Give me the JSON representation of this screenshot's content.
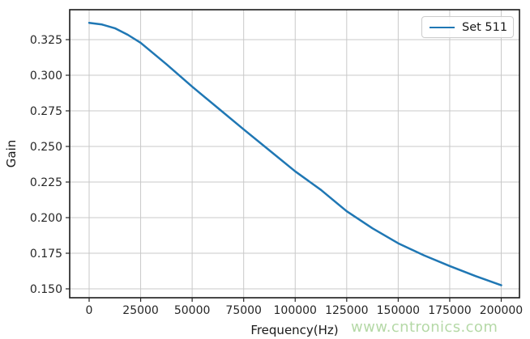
{
  "chart_data": {
    "type": "line",
    "title": "",
    "xlabel": "Frequency(Hz)",
    "ylabel": "Gain",
    "grid": true,
    "grid_color": "#c9c9c9",
    "axis_color": "#262626",
    "frame_color": "#1a1a1a",
    "xlim": [
      -9440,
      208850
    ],
    "ylim": [
      0.14375,
      0.34602
    ],
    "xticks": [
      0,
      25000,
      50000,
      75000,
      100000,
      125000,
      150000,
      175000,
      200000
    ],
    "xtick_labels": [
      "0",
      "25000",
      "50000",
      "75000",
      "100000",
      "125000",
      "150000",
      "175000",
      "200000"
    ],
    "yticks": [
      0.15,
      0.175,
      0.2,
      0.225,
      0.25,
      0.275,
      0.3,
      0.325
    ],
    "ytick_labels": [
      "0.150",
      "0.175",
      "0.200",
      "0.225",
      "0.250",
      "0.275",
      "0.300",
      "0.325"
    ],
    "x": [
      0,
      6250,
      12500,
      18750,
      25000,
      37500,
      50000,
      62500,
      75000,
      87500,
      100000,
      112500,
      125000,
      137500,
      150000,
      162500,
      175000,
      187500,
      200000
    ],
    "series": [
      {
        "name": "Set 511",
        "color": "#1f77b4",
        "values": [
          0.3368,
          0.3356,
          0.333,
          0.3284,
          0.3228,
          0.3078,
          0.292,
          0.277,
          0.262,
          0.2472,
          0.2325,
          0.2195,
          0.2045,
          0.1925,
          0.182,
          0.1735,
          0.166,
          0.159,
          0.1525
        ]
      }
    ],
    "legend": {
      "position": "upper right",
      "entries": [
        "Set 511"
      ]
    }
  },
  "watermark": {
    "text": "www.cntronics.com",
    "color": "#b2d7a3"
  }
}
